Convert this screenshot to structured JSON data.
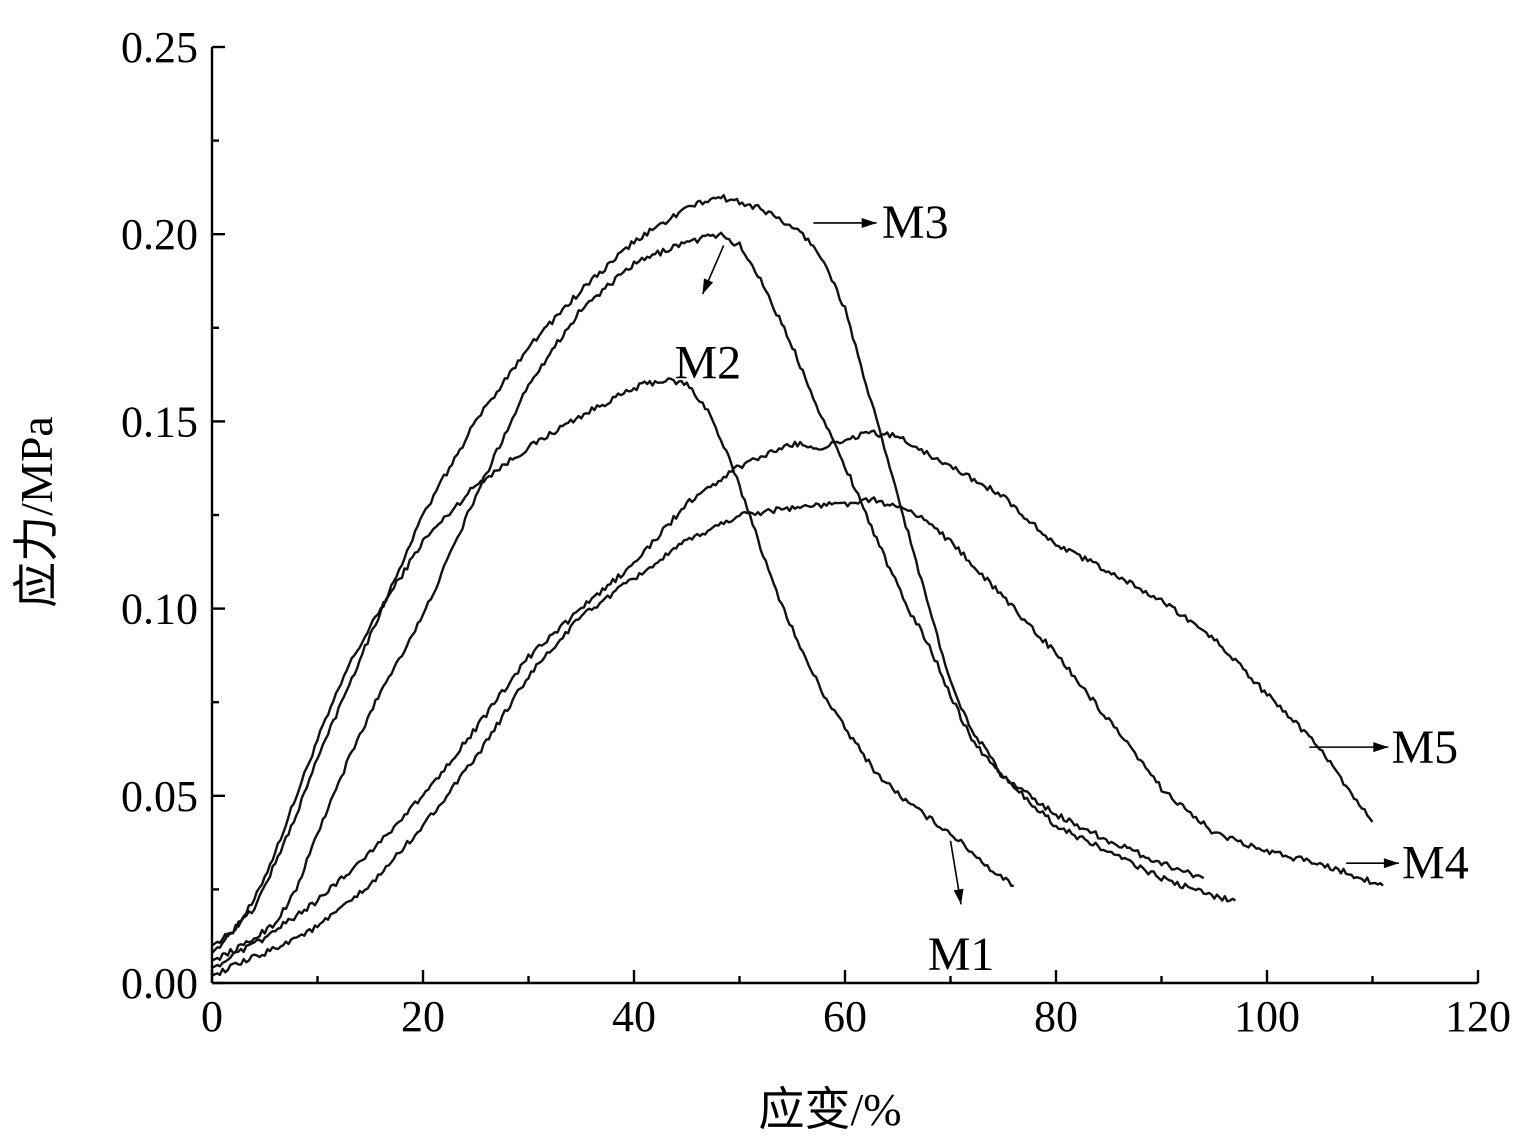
{
  "chart_data": {
    "type": "line",
    "xlabel": "应变/%",
    "ylabel": "应力/MPa",
    "xlim": [
      0,
      120
    ],
    "ylim": [
      0,
      0.25
    ],
    "x_ticks": [
      0,
      20,
      40,
      60,
      80,
      100,
      120
    ],
    "y_ticks": [
      0.0,
      0.05,
      0.1,
      0.15,
      0.2,
      0.25
    ],
    "x_tick_labels": [
      "0",
      "20",
      "40",
      "60",
      "80",
      "100",
      "120"
    ],
    "y_tick_labels": [
      "0.00",
      "0.05",
      "0.10",
      "0.15",
      "0.20",
      "0.25"
    ],
    "series": [
      {
        "name": "M1",
        "x": [
          0,
          2,
          4,
          6,
          8,
          10,
          13,
          16,
          20,
          25,
          30,
          34,
          38,
          41,
          43,
          45,
          47,
          49,
          51,
          53,
          56,
          58,
          60,
          63,
          66,
          68,
          70,
          72,
          74,
          76
        ],
        "y": [
          0.008,
          0.014,
          0.022,
          0.035,
          0.05,
          0.065,
          0.085,
          0.1,
          0.118,
          0.133,
          0.143,
          0.15,
          0.156,
          0.16,
          0.161,
          0.16,
          0.153,
          0.14,
          0.125,
          0.108,
          0.088,
          0.077,
          0.068,
          0.056,
          0.048,
          0.044,
          0.04,
          0.035,
          0.03,
          0.026
        ]
      },
      {
        "name": "M2",
        "x": [
          0,
          3,
          6,
          8,
          10,
          13,
          16,
          20,
          25,
          30,
          35,
          40,
          44,
          48,
          50,
          52,
          55,
          58,
          61,
          64,
          66,
          68,
          70,
          72,
          75,
          80,
          85,
          90,
          94
        ],
        "y": [
          0.006,
          0.01,
          0.016,
          0.025,
          0.04,
          0.06,
          0.078,
          0.098,
          0.13,
          0.16,
          0.18,
          0.192,
          0.197,
          0.2,
          0.197,
          0.188,
          0.17,
          0.15,
          0.132,
          0.112,
          0.1,
          0.09,
          0.077,
          0.065,
          0.055,
          0.045,
          0.038,
          0.032,
          0.028
        ]
      },
      {
        "name": "M3",
        "x": [
          0,
          2,
          4,
          6,
          8,
          10,
          15,
          20,
          25,
          30,
          35,
          40,
          45,
          48,
          52,
          56,
          58,
          60,
          62,
          64,
          66,
          68,
          70,
          72,
          75,
          80,
          85,
          90,
          94,
          97
        ],
        "y": [
          0.01,
          0.014,
          0.02,
          0.032,
          0.045,
          0.06,
          0.093,
          0.125,
          0.15,
          0.17,
          0.185,
          0.198,
          0.207,
          0.21,
          0.207,
          0.2,
          0.193,
          0.18,
          0.16,
          0.14,
          0.12,
          0.1,
          0.08,
          0.068,
          0.055,
          0.042,
          0.035,
          0.028,
          0.024,
          0.022
        ]
      },
      {
        "name": "M4",
        "x": [
          0,
          5,
          10,
          15,
          20,
          25,
          30,
          35,
          40,
          45,
          50,
          55,
          60,
          63,
          67,
          70,
          75,
          80,
          85,
          90,
          95,
          100,
          105,
          108,
          111
        ],
        "y": [
          0.002,
          0.008,
          0.015,
          0.026,
          0.042,
          0.06,
          0.082,
          0.098,
          0.108,
          0.118,
          0.125,
          0.127,
          0.128,
          0.129,
          0.125,
          0.118,
          0.103,
          0.088,
          0.07,
          0.052,
          0.04,
          0.035,
          0.032,
          0.029,
          0.026
        ]
      },
      {
        "name": "M5",
        "x": [
          0,
          5,
          10,
          15,
          20,
          25,
          30,
          35,
          40,
          45,
          50,
          55,
          58,
          62,
          65,
          70,
          75,
          80,
          85,
          90,
          95,
          100,
          105,
          108,
          110
        ],
        "y": [
          0.004,
          0.012,
          0.022,
          0.035,
          0.05,
          0.068,
          0.087,
          0.1,
          0.112,
          0.128,
          0.138,
          0.144,
          0.143,
          0.147,
          0.146,
          0.138,
          0.13,
          0.117,
          0.11,
          0.102,
          0.092,
          0.077,
          0.063,
          0.05,
          0.043
        ]
      }
    ],
    "annotations": [
      {
        "label": "M1",
        "text": "M1",
        "from": [
          70,
          0.038
        ],
        "to": [
          71,
          0.021
        ],
        "text_at": [
          71,
          0.008
        ],
        "anchor": "middle"
      },
      {
        "label": "M2",
        "text": "M2",
        "from": [
          48.5,
          0.197
        ],
        "to": [
          46.5,
          0.184
        ],
        "text_at": [
          47,
          0.166
        ],
        "anchor": "middle"
      },
      {
        "label": "M3",
        "text": "M3",
        "from": [
          57,
          0.203
        ],
        "to": [
          63,
          0.203
        ],
        "text_at": [
          63.5,
          0.2035
        ],
        "anchor": "start"
      },
      {
        "label": "M4",
        "text": "M4",
        "from": [
          107.5,
          0.032
        ],
        "to": [
          112.5,
          0.032
        ],
        "text_at": [
          112.8,
          0.0325
        ],
        "anchor": "start"
      },
      {
        "label": "M5",
        "text": "M5",
        "from": [
          104,
          0.063
        ],
        "to": [
          111.5,
          0.063
        ],
        "text_at": [
          111.8,
          0.0633
        ],
        "anchor": "start"
      }
    ]
  }
}
